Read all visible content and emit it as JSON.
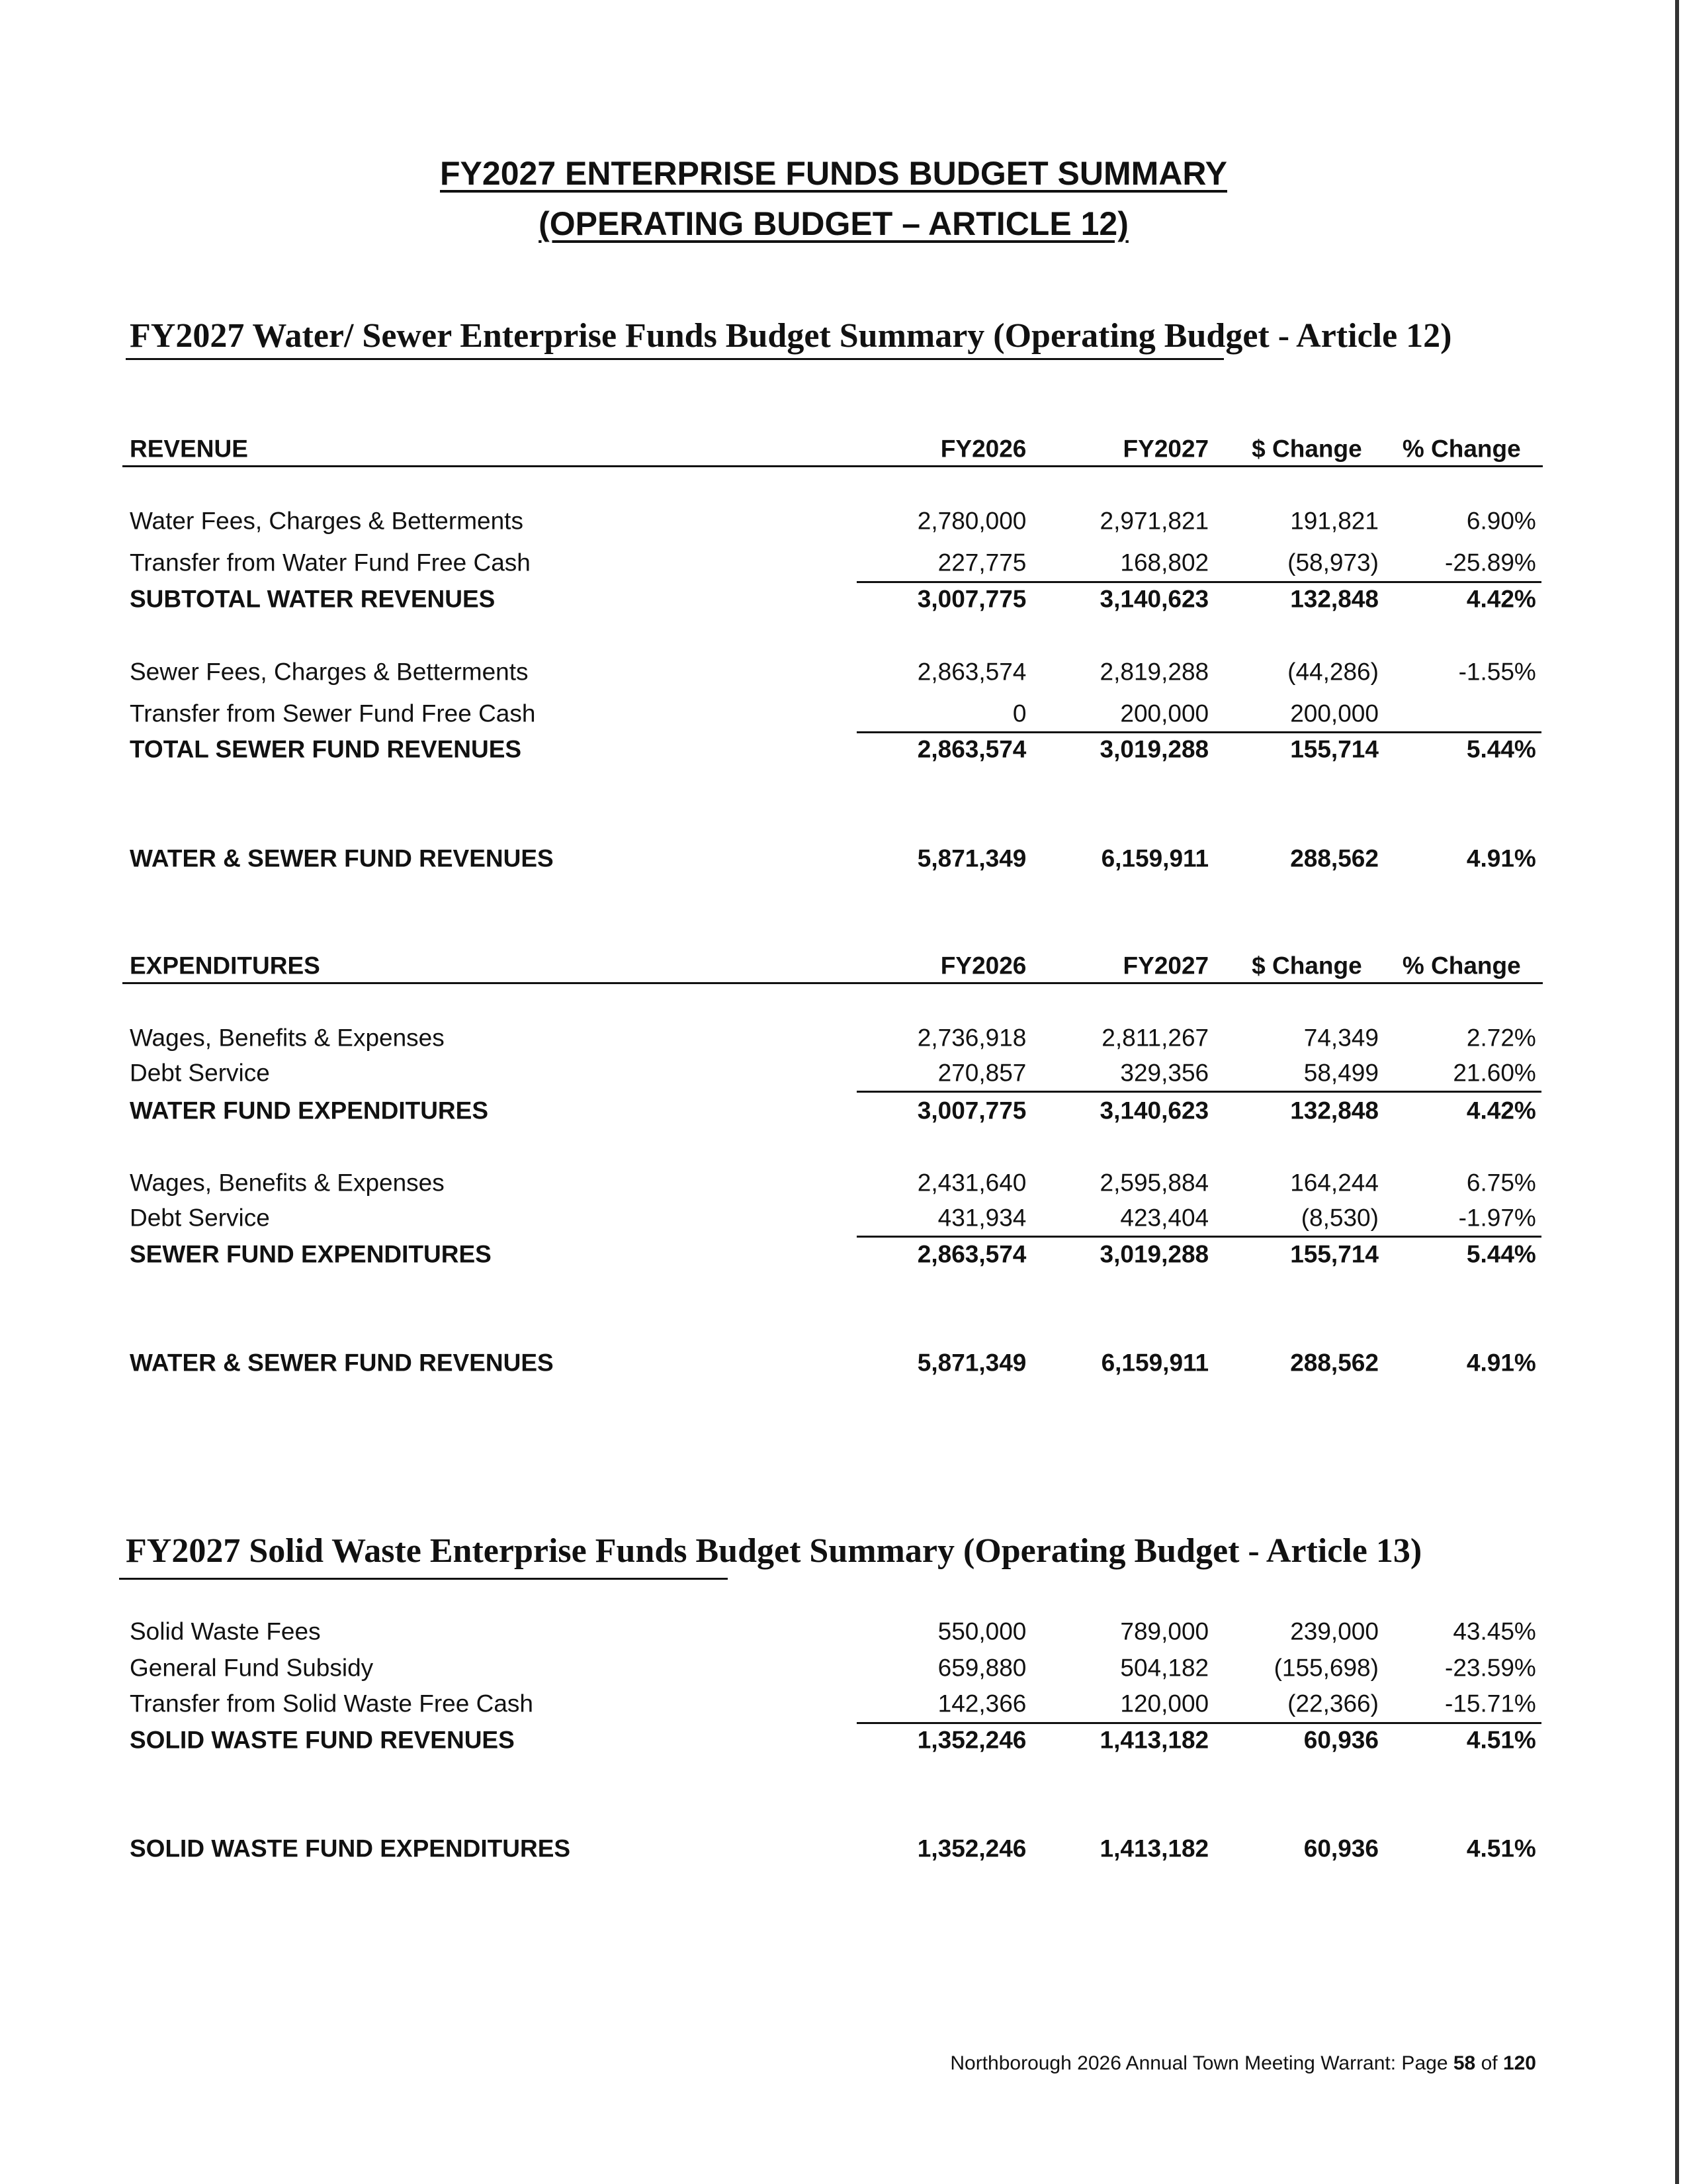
{
  "title": [
    "FY2027 ENTERPRISE FUNDS BUDGET SUMMARY",
    "(OPERATING BUDGET – ARTICLE 12)"
  ],
  "water_sewer": {
    "title": "FY2027 Water/ Sewer Enterprise Funds Budget Summary (Operating Budget - Article 12)",
    "revenue": {
      "header": [
        "REVENUE",
        "FY2026",
        "FY2027",
        "$ Change",
        "% Change"
      ],
      "rows": [
        {
          "label": "Water Fees, Charges & Betterments",
          "values": [
            "2,780,000",
            "2,971,821",
            "191,821",
            "6.90%"
          ]
        },
        {
          "label": "Transfer from Water Fund Free Cash",
          "values": [
            "227,775",
            "168,802",
            "(58,973)",
            "-25.89%"
          ]
        },
        {
          "label": "SUBTOTAL WATER REVENUES",
          "values": [
            "3,007,775",
            "3,140,623",
            "132,848",
            "4.42%"
          ]
        },
        {
          "label": "Sewer Fees, Charges & Betterments",
          "values": [
            "2,863,574",
            "2,819,288",
            "(44,286)",
            "-1.55%"
          ]
        },
        {
          "label": "Transfer from Sewer Fund Free Cash",
          "values": [
            "0",
            "200,000",
            "200,000"
          ]
        },
        {
          "label": "TOTAL SEWER FUND REVENUES",
          "values": [
            "2,863,574",
            "3,019,288",
            "155,714",
            "5.44%"
          ]
        },
        {
          "label": "WATER & SEWER FUND REVENUES",
          "values": [
            "5,871,349",
            "6,159,911",
            "288,562",
            "4.91%"
          ]
        }
      ]
    },
    "expenditures": {
      "header": [
        "EXPENDITURES",
        "FY2026",
        "FY2027",
        "$ Change",
        "% Change"
      ],
      "rows": [
        {
          "label": "Wages, Benefits & Expenses",
          "values": [
            "2,736,918",
            "2,811,267",
            "74,349",
            "2.72%"
          ]
        },
        {
          "label": "Debt Service",
          "values": [
            "270,857",
            "329,356",
            "58,499",
            "21.60%"
          ]
        },
        {
          "label": "WATER FUND EXPENDITURES",
          "values": [
            "3,007,775",
            "3,140,623",
            "132,848",
            "4.42%"
          ]
        },
        {
          "label": "Wages, Benefits & Expenses",
          "values": [
            "2,431,640",
            "2,595,884",
            "164,244",
            "6.75%"
          ]
        },
        {
          "label": "Debt Service",
          "values": [
            "431,934",
            "423,404",
            "(8,530)",
            "-1.97%"
          ]
        },
        {
          "label": "SEWER FUND EXPENDITURES",
          "values": [
            "2,863,574",
            "3,019,288",
            "155,714",
            "5.44%"
          ]
        },
        {
          "label": "WATER & SEWER FUND REVENUES",
          "values": [
            "5,871,349",
            "6,159,911",
            "288,562",
            "4.91%"
          ]
        }
      ]
    }
  },
  "solid_waste": {
    "title": "FY2027 Solid Waste Enterprise Funds Budget Summary (Operating Budget - Article 13)",
    "rows": [
      {
        "label": "Solid Waste Fees",
        "values": [
          "550,000",
          "789,000",
          "239,000",
          "43.45%"
        ]
      },
      {
        "label": "General Fund Subsidy",
        "values": [
          "659,880",
          "504,182",
          "(155,698)",
          "-23.59%"
        ]
      },
      {
        "label": "Transfer from Solid Waste Free Cash",
        "values": [
          "142,366",
          "120,000",
          "(22,366)",
          "-15.71%"
        ]
      },
      {
        "label": "SOLID WASTE FUND REVENUES",
        "values": [
          "1,352,246",
          "1,413,182",
          "60,936",
          "4.51%"
        ]
      },
      {
        "label": "SOLID WASTE FUND EXPENDITURES",
        "values": [
          "1,352,246",
          "1,413,182",
          "60,936",
          "4.51%"
        ]
      }
    ]
  },
  "footer": {
    "text": "Northborough 2026 Annual Town Meeting Warrant: Page",
    "page": "58",
    "of": "of",
    "total": "120"
  }
}
